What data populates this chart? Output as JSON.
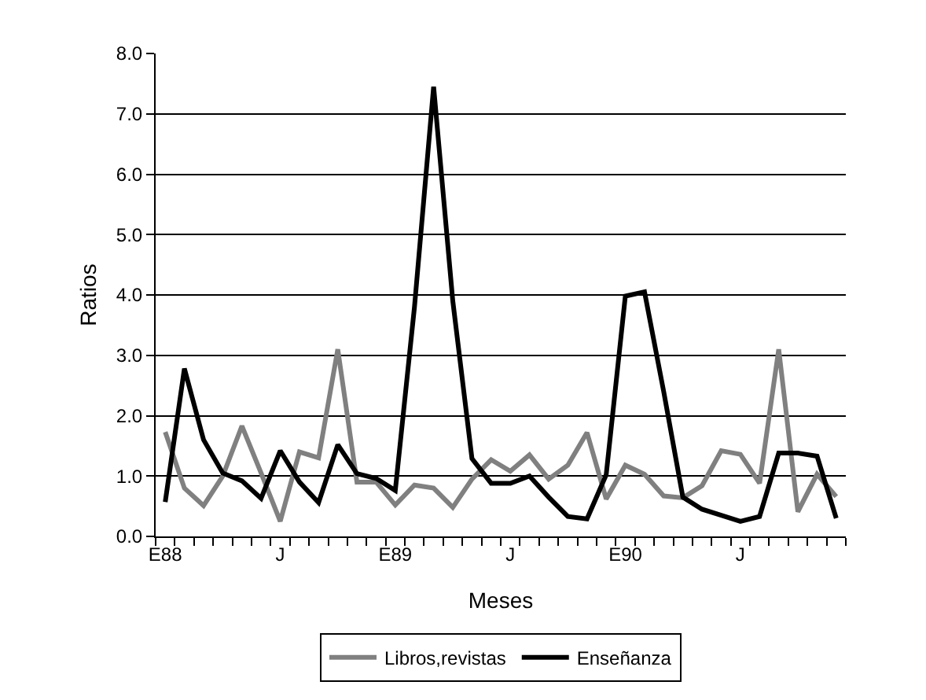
{
  "chart_data": {
    "type": "line",
    "xlabel": "Meses",
    "ylabel": "Ratios",
    "categories": [
      "E88",
      null,
      null,
      null,
      null,
      null,
      "J",
      null,
      null,
      null,
      null,
      null,
      "E89",
      null,
      null,
      null,
      null,
      null,
      "J",
      null,
      null,
      null,
      null,
      null,
      "E90",
      null,
      null,
      null,
      null,
      null,
      "J",
      null,
      null,
      null,
      null,
      null
    ],
    "series": [
      {
        "name": "Libros,revistas",
        "color": "#808080",
        "values": [
          1.73,
          0.8,
          0.51,
          1.0,
          1.83,
          1.05,
          0.25,
          1.4,
          1.3,
          3.1,
          0.9,
          0.9,
          0.52,
          0.85,
          0.8,
          0.48,
          0.95,
          1.27,
          1.08,
          1.35,
          0.95,
          1.18,
          1.72,
          0.62,
          1.18,
          1.03,
          0.67,
          0.64,
          0.84,
          1.42,
          1.36,
          0.88,
          3.1,
          0.41,
          1.03,
          0.66
        ]
      },
      {
        "name": "Enseñanza",
        "color": "#000000",
        "values": [
          0.57,
          2.78,
          1.6,
          1.05,
          0.92,
          0.63,
          1.42,
          0.9,
          0.56,
          1.52,
          1.04,
          0.96,
          0.76,
          3.8,
          7.45,
          3.9,
          1.29,
          0.88,
          0.88,
          1.0,
          0.65,
          0.33,
          0.29,
          1.02,
          3.98,
          4.05,
          2.4,
          0.65,
          0.45,
          0.35,
          0.25,
          0.33,
          1.38,
          1.38,
          1.33,
          0.3
        ]
      }
    ],
    "ylim": [
      0,
      8
    ],
    "yticks": [
      {
        "value": 0,
        "label": "0.0"
      },
      {
        "value": 1,
        "label": "1.0"
      },
      {
        "value": 2,
        "label": "2.0"
      },
      {
        "value": 3,
        "label": "3.0"
      },
      {
        "value": 4,
        "label": "4.0"
      },
      {
        "value": 5,
        "label": "5.0"
      },
      {
        "value": 6,
        "label": "6.0"
      },
      {
        "value": 7,
        "label": "7.0"
      },
      {
        "value": 8,
        "label": "8.0"
      }
    ],
    "grid": "y",
    "legend": "bottom",
    "marker": "none",
    "line_style": "solid"
  }
}
